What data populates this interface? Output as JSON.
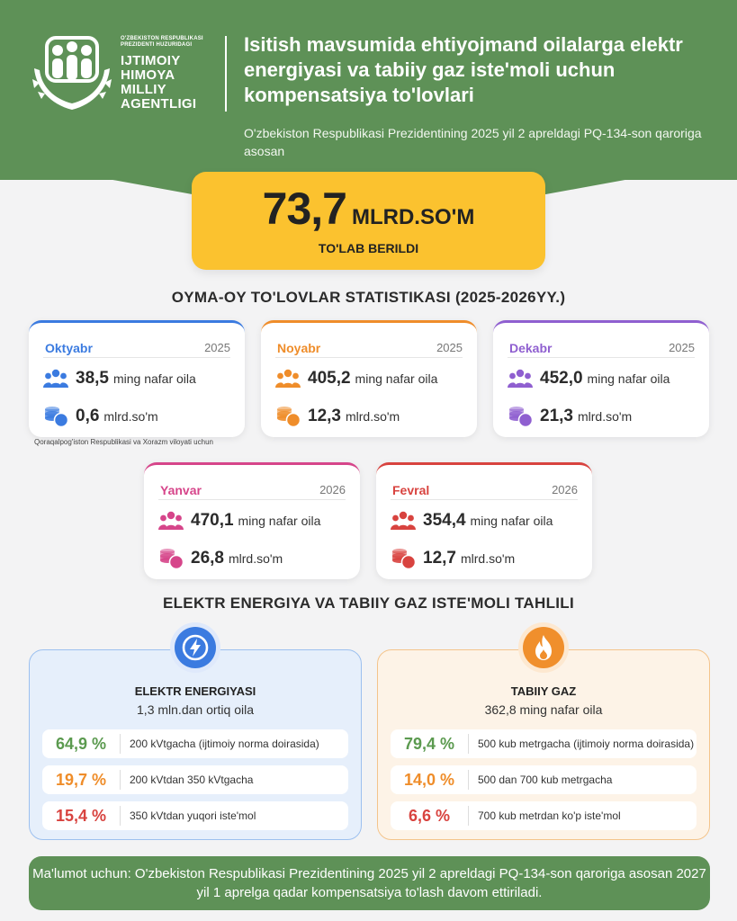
{
  "header": {
    "logo_small": "O'ZBEKISTON RESPUBLIKASI PREZIDENTI HUZURIDAGI",
    "logo_lines": [
      "IJTIMOIY",
      "HIMOYA",
      "MILLIY",
      "AGENTLIGI"
    ],
    "title": "Isitish mavsumida ehtiyojmand oilalarga elektr energiyasi va tabiiy gaz iste'moli uchun kompensatsiya to'lovlari",
    "subtitle": "O'zbekiston Respublikasi Prezidentining 2025 yil 2 apreldagi PQ-134-son qaroriga asosan"
  },
  "total": {
    "value": "73,7",
    "unit": "MLRD.SO'M",
    "caption": "TO'LAB BERILDI"
  },
  "monthly_title": "OYMA-OY TO'LOVLAR STATISTIKASI (2025-2026YY.)",
  "months": [
    {
      "name": "Oktyabr",
      "year": "2025",
      "families": "38,5",
      "families_unit": "ming nafar oila",
      "amount": "0,6",
      "amount_unit": "mlrd.so'm",
      "color": "#3b7be0"
    },
    {
      "name": "Noyabr",
      "year": "2025",
      "families": "405,2",
      "families_unit": "ming nafar oila",
      "amount": "12,3",
      "amount_unit": "mlrd.so'm",
      "color": "#ef8d2a"
    },
    {
      "name": "Dekabr",
      "year": "2025",
      "families": "452,0",
      "families_unit": "ming nafar oila",
      "amount": "21,3",
      "amount_unit": "mlrd.so'm",
      "color": "#8f5fd0"
    },
    {
      "name": "Yanvar",
      "year": "2026",
      "families": "470,1",
      "families_unit": "ming nafar oila",
      "amount": "26,8",
      "amount_unit": "mlrd.so'm",
      "color": "#d6458a"
    },
    {
      "name": "Fevral",
      "year": "2026",
      "families": "354,4",
      "families_unit": "ming nafar oila",
      "amount": "12,7",
      "amount_unit": "mlrd.so'm",
      "color": "#d8433f"
    }
  ],
  "october_note": "Qoraqalpog'iston Respublikasi va Xorazm viloyati uchun",
  "analysis_title": "ELEKTR ENERGIYA VA TABIIY GAZ ISTE'MOLI TAHLILI",
  "electricity": {
    "title": "ELEKTR ENERGIYASI",
    "subtitle": "1,3 mln.dan ortiq oila",
    "icon": "lightning-icon",
    "rows": [
      {
        "pct": "64,9 %",
        "desc": "200 kVtgacha (ijtimoiy norma doirasida)",
        "color": "#5b9a4f"
      },
      {
        "pct": "19,7 %",
        "desc": "200 kVtdan 350 kVtgacha",
        "color": "#ef8d2a"
      },
      {
        "pct": "15,4 %",
        "desc": "350 kVtdan yuqori iste'mol",
        "color": "#d8433f"
      }
    ]
  },
  "gas": {
    "title": "TABIIY GAZ",
    "subtitle": "362,8 ming nafar oila",
    "icon": "flame-icon",
    "rows": [
      {
        "pct": "79,4 %",
        "desc": "500 kub metrgacha (ijtimoiy norma doirasida)",
        "color": "#5b9a4f"
      },
      {
        "pct": "14,0 %",
        "desc": "500 dan 700 kub metrgacha",
        "color": "#ef8d2a"
      },
      {
        "pct": "6,6 %",
        "desc": "700 kub metrdan ko'p iste'mol",
        "color": "#d8433f"
      }
    ]
  },
  "footer": "Ma'lumot uchun: O'zbekiston Respublikasi Prezidentining 2025 yil 2 apreldagi PQ-134-son qaroriga asosan 2027 yil 1 aprelga qadar kompensatsiya to'lash davom ettiriladi."
}
